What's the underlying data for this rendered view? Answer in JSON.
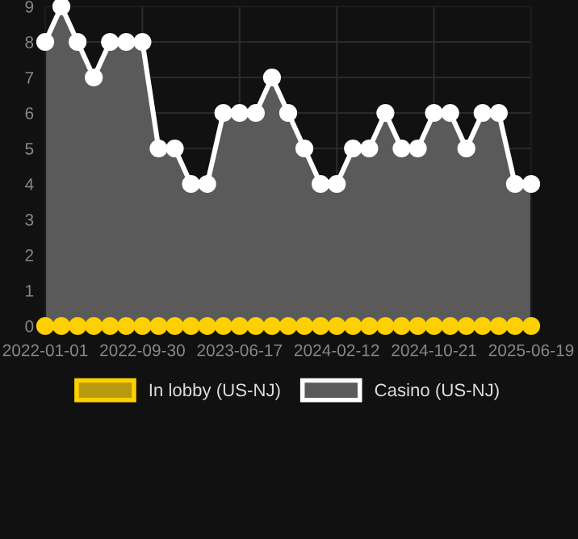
{
  "chart_data": {
    "type": "line",
    "categories": [
      "2022-01-01",
      null,
      null,
      null,
      null,
      null,
      "2022-09-30",
      null,
      null,
      null,
      null,
      null,
      "2023-06-17",
      null,
      null,
      null,
      null,
      null,
      "2024-02-12",
      null,
      null,
      null,
      null,
      null,
      "2024-10-21",
      null,
      null,
      null,
      null,
      null,
      "2025-06-19"
    ],
    "series": [
      {
        "name": "In lobby (US-NJ)",
        "color": "#ffd000",
        "values": [
          0,
          0,
          0,
          0,
          0,
          0,
          0,
          0,
          0,
          0,
          0,
          0,
          0,
          0,
          0,
          0,
          0,
          0,
          0,
          0,
          0,
          0,
          0,
          0,
          0,
          0,
          0,
          0,
          0,
          0,
          0
        ]
      },
      {
        "name": "Casino (US-NJ)",
        "color": "#ffffff",
        "type": "area",
        "values": [
          8,
          9,
          8,
          7,
          8,
          8,
          8,
          5,
          5,
          4,
          4,
          6,
          6,
          6,
          7,
          6,
          5,
          4,
          4,
          5,
          5,
          6,
          5,
          5,
          6,
          6,
          5,
          6,
          6,
          4,
          4
        ]
      }
    ],
    "ylim": [
      0,
      9
    ],
    "yticks": [
      0,
      1,
      2,
      3,
      4,
      5,
      6,
      7,
      8,
      9
    ],
    "grid": true,
    "legend": "bottom",
    "marker": "circle"
  }
}
